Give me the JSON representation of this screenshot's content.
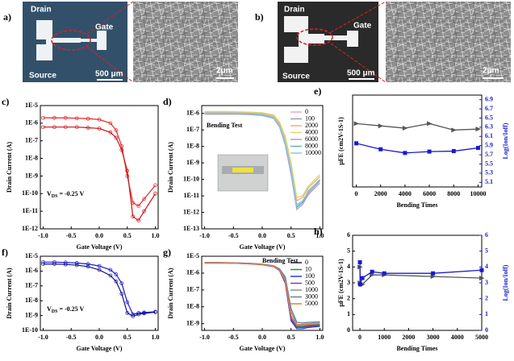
{
  "images": [
    {
      "label": "a)",
      "drain": "Drain",
      "gate": "Gate",
      "source": "Source",
      "scale_photo": "500 μm",
      "scale_sem": "2μm"
    },
    {
      "label": "b)",
      "drain": "Drain",
      "gate": "Gate",
      "source": "Source",
      "scale_photo": "500 μm",
      "scale_sem": "2μm"
    }
  ],
  "chart_data": [
    {
      "type": "line",
      "label": "c)",
      "xlabel": "Gate Voltage (V)",
      "ylabel": "Drain Current (A)",
      "yscale": "log",
      "annotation": {
        "main": "V",
        "sub": "DS",
        "rest": " = -0.25 V"
      },
      "x": [
        -1,
        -0.8,
        -0.6,
        -0.4,
        -0.2,
        0,
        0.2,
        0.3,
        0.4,
        0.5,
        0.6,
        0.7,
        0.8,
        1
      ],
      "xlim": [
        -1.05,
        1.05
      ],
      "xticks": [
        {
          "value": -1,
          "label": "-1.0"
        },
        -0.5,
        {
          "value": 0,
          "label": "0.0"
        },
        0.5,
        {
          "value": 1,
          "label": "1.0"
        }
      ],
      "ylim": [
        1e-12,
        1e-05
      ],
      "yticks": [
        {
          "value": 1e-05,
          "label": "1E-5"
        },
        {
          "value": 1e-06,
          "label": "1E-6"
        },
        {
          "value": 1e-07,
          "label": "1E-7"
        },
        {
          "value": 1e-08,
          "label": "1E-8"
        },
        {
          "value": 1e-09,
          "label": "1E-9"
        },
        {
          "value": 1e-10,
          "label": "1E-10"
        },
        {
          "value": 1e-11,
          "label": "1E-11"
        },
        {
          "value": 1e-12,
          "label": "1E-12"
        }
      ],
      "marker": "circle",
      "series": [
        {
          "color": "#e8262b",
          "values": [
            2e-06,
            2e-06,
            2e-06,
            1.9e-06,
            1.8e-06,
            1.6e-06,
            1e-06,
            4e-07,
            5e-08,
            1e-09,
            3e-11,
            2e-11,
            5e-11,
            3e-10
          ]
        },
        {
          "color": "#c81418",
          "values": [
            6e-07,
            6e-07,
            6e-07,
            6e-07,
            5.5e-07,
            5e-07,
            3e-07,
            1.5e-07,
            3e-08,
            2e-09,
            5e-12,
            3e-12,
            1e-11,
            1e-10
          ]
        }
      ]
    },
    {
      "type": "line",
      "label": "d)",
      "xlabel": "Gate Voltage (V)",
      "ylabel": "Drain Current (A)",
      "yscale": "log",
      "legend": "upper right",
      "annotation": {
        "main": "Bending Test"
      },
      "x": [
        -1,
        -0.8,
        -0.6,
        -0.4,
        -0.2,
        0,
        0.2,
        0.3,
        0.4,
        0.5,
        0.6,
        0.7,
        0.8,
        1
      ],
      "xlim": [
        -1.05,
        1.05
      ],
      "xticks": [
        {
          "value": -1,
          "label": "-1.0"
        },
        -0.5,
        {
          "value": 0,
          "label": "0.0"
        },
        0.5,
        {
          "value": 1,
          "label": "1.0"
        }
      ],
      "ylim": [
        1e-13,
        3e-06
      ],
      "yticks": [
        {
          "value": 1e-06,
          "label": "1E-6"
        },
        {
          "value": 1e-07,
          "label": "1E-7"
        },
        {
          "value": 1e-08,
          "label": "1E-8"
        },
        {
          "value": 1e-09,
          "label": "1E-9"
        },
        {
          "value": 1e-10,
          "label": "1E-10"
        },
        {
          "value": 1e-11,
          "label": "1E-11"
        },
        {
          "value": 1e-12,
          "label": "1E-12"
        },
        {
          "value": 1e-13,
          "label": "1E-13"
        }
      ],
      "series": [
        {
          "name": "0",
          "color": "#f4a6b8",
          "values": [
            1.1e-06,
            1.1e-06,
            1.1e-06,
            1.1e-06,
            1.05e-06,
            9e-07,
            6e-07,
            2e-07,
            2e-08,
            5e-10,
            3e-12,
            5e-12,
            2e-11,
            1e-10
          ]
        },
        {
          "name": "100",
          "color": "#a0a0a0",
          "values": [
            1e-06,
            1e-06,
            1e-06,
            1e-06,
            9.5e-07,
            8.5e-07,
            5.5e-07,
            1.8e-07,
            1.5e-08,
            3e-10,
            2e-12,
            4e-12,
            1.5e-11,
            8e-11
          ]
        },
        {
          "name": "2000",
          "color": "#f0b070",
          "values": [
            1.2e-06,
            1.2e-06,
            1.2e-06,
            1.2e-06,
            1.1e-06,
            1e-06,
            7e-07,
            2.5e-07,
            3e-08,
            8e-10,
            5e-12,
            8e-12,
            3e-11,
            1.5e-10
          ]
        },
        {
          "name": "4000",
          "color": "#e0d860",
          "values": [
            1.3e-06,
            1.3e-06,
            1.3e-06,
            1.25e-06,
            1.2e-06,
            1.1e-06,
            8e-07,
            3e-07,
            4e-08,
            1e-09,
            8e-12,
            1e-11,
            4e-11,
            2e-10
          ]
        },
        {
          "name": "6000",
          "color": "#b89ad8",
          "values": [
            9e-07,
            9e-07,
            9e-07,
            9e-07,
            8.5e-07,
            7.5e-07,
            5e-07,
            1.5e-07,
            1.2e-08,
            2e-10,
            1.5e-12,
            3e-12,
            1.2e-11,
            6e-11
          ]
        },
        {
          "name": "8000",
          "color": "#5ab8b0",
          "values": [
            1e-06,
            1e-06,
            1e-06,
            1e-06,
            9.5e-07,
            8e-07,
            5e-07,
            1.6e-07,
            1.4e-08,
            4e-10,
            2e-12,
            4e-12,
            2e-11,
            9e-11
          ]
        },
        {
          "name": "10000",
          "color": "#88c8f0",
          "values": [
            1.05e-06,
            1.05e-06,
            1.05e-06,
            1.05e-06,
            1e-06,
            8.5e-07,
            5.5e-07,
            1.7e-07,
            1.6e-08,
            4e-10,
            2.5e-12,
            5e-12,
            1.8e-11,
            1e-10
          ]
        }
      ]
    },
    {
      "type": "dual",
      "label": "e)",
      "xlabel": "Bending Times",
      "ylabel": "μFE (cm2V-1S-1)",
      "y2label": "Log(Ion/Ioff)",
      "y2color": "#1a1ad0",
      "x": [
        0,
        2000,
        4000,
        6000,
        8000,
        10000
      ],
      "xlim": [
        -300,
        10300
      ],
      "xticks": [
        0,
        2000,
        4000,
        6000,
        8000,
        10000
      ],
      "ylim": [
        5.0,
        7.0
      ],
      "y2lim": [
        5.0,
        7.0
      ],
      "y2ticks": [
        5.1,
        5.3,
        5.5,
        5.7,
        5.9,
        6.1,
        6.3,
        6.5,
        6.7,
        6.9
      ],
      "series": [
        {
          "color": "#555555",
          "marker": "triangle",
          "values": [
            6.38,
            6.33,
            6.28,
            6.38,
            6.24,
            6.26
          ]
        },
        {
          "color": "#1a1ad0",
          "marker": "square",
          "axis": "y2",
          "values": [
            5.95,
            5.82,
            5.74,
            5.77,
            5.78,
            5.85
          ]
        }
      ]
    },
    {
      "type": "line",
      "label": "f)",
      "xlabel": "Gate Voltage (V)",
      "ylabel": "Drain Current (A)",
      "yscale": "log",
      "annotation": {
        "main": "V",
        "sub": "DS",
        "rest": " = -0.25 V"
      },
      "x": [
        -1,
        -0.8,
        -0.6,
        -0.4,
        -0.2,
        0,
        0.2,
        0.3,
        0.4,
        0.5,
        0.6,
        0.7,
        0.8,
        1
      ],
      "xlim": [
        -1.05,
        1.05
      ],
      "xticks": [
        {
          "value": -1,
          "label": "-1.0"
        },
        -0.5,
        {
          "value": 0,
          "label": "0.0"
        },
        0.5,
        {
          "value": 1,
          "label": "1.0"
        }
      ],
      "ylim": [
        1e-10,
        1e-05
      ],
      "yticks": [
        {
          "value": 1e-05,
          "label": "1E-5"
        },
        {
          "value": 1e-06,
          "label": "1E-6"
        },
        {
          "value": 1e-07,
          "label": "1E-7"
        },
        {
          "value": 1e-08,
          "label": "1E-8"
        },
        {
          "value": 1e-09,
          "label": "1E-9"
        },
        {
          "value": 1e-10,
          "label": "1E-10"
        }
      ],
      "marker": "circle",
      "series": [
        {
          "color": "#1a1ad0",
          "values": [
            4e-06,
            4e-06,
            3.8e-06,
            3.5e-06,
            3e-06,
            2.2e-06,
            1.2e-06,
            6e-07,
            1.5e-07,
            8e-09,
            1.2e-09,
            1.5e-09,
            1.6e-09,
            1.8e-09
          ]
        },
        {
          "color": "#10108a",
          "values": [
            3e-06,
            3e-06,
            2.8e-06,
            2.5e-06,
            2e-06,
            1.2e-06,
            5e-07,
            2e-07,
            3e-08,
            1.5e-09,
            9e-10,
            1.2e-09,
            1.4e-09,
            1.7e-09
          ]
        }
      ]
    },
    {
      "type": "line",
      "label": "g)",
      "xlabel": "Gate Voltage (V)",
      "ylabel": "Drain Current (A)",
      "yscale": "log",
      "legend": "upper right",
      "annotation": {
        "main": "Bending Test"
      },
      "x": [
        -1,
        -0.8,
        -0.6,
        -0.4,
        -0.2,
        0,
        0.2,
        0.3,
        0.4,
        0.5,
        0.6,
        0.7,
        0.8,
        1
      ],
      "xlim": [
        -1.05,
        1.05
      ],
      "xticks": [
        {
          "value": -1,
          "label": "-1.0"
        },
        -0.5,
        {
          "value": 0,
          "label": "0.0"
        },
        0.5,
        {
          "value": 1,
          "label": "1.0"
        }
      ],
      "ylim": [
        4e-10,
        1e-05
      ],
      "yticks": [
        {
          "value": 1e-05,
          "label": "1E-5"
        },
        {
          "value": 1e-06,
          "label": "1E-6"
        },
        {
          "value": 1e-07,
          "label": "1E-7"
        },
        {
          "value": 1e-08,
          "label": "1E-8"
        },
        {
          "value": 1e-09,
          "label": "1E-9"
        }
      ],
      "series": [
        {
          "name": "0",
          "color": "#222222",
          "values": [
            4e-06,
            4e-06,
            4e-06,
            3.8e-06,
            3.6e-06,
            3.2e-06,
            2.5e-06,
            1.5e-06,
            3e-07,
            2e-09,
            6e-10,
            6e-10,
            7e-10,
            8e-10
          ]
        },
        {
          "name": "10",
          "color": "#2e8b2e",
          "values": [
            4.2e-06,
            4.2e-06,
            4.1e-06,
            3.9e-06,
            3.7e-06,
            3.3e-06,
            2.6e-06,
            1.6e-06,
            4e-07,
            3e-09,
            7e-10,
            7e-10,
            8e-10,
            9e-10
          ]
        },
        {
          "name": "100",
          "color": "#2040d0",
          "values": [
            4.1e-06,
            4.1e-06,
            4e-06,
            3.9e-06,
            3.7e-06,
            3.2e-06,
            2.4e-06,
            1.4e-06,
            2.5e-07,
            1.5e-09,
            5e-10,
            5e-10,
            6e-10,
            7e-10
          ]
        },
        {
          "name": "500",
          "color": "#8040a0",
          "values": [
            3.9e-06,
            3.9e-06,
            3.9e-06,
            3.7e-06,
            3.5e-06,
            3.1e-06,
            2.4e-06,
            1.4e-06,
            2.8e-07,
            2e-09,
            6e-10,
            6e-10,
            7e-10,
            8e-10
          ]
        },
        {
          "name": "1000",
          "color": "#909090",
          "values": [
            4e-06,
            4e-06,
            4e-06,
            3.8e-06,
            3.6e-06,
            3.3e-06,
            2.6e-06,
            1.7e-06,
            5e-07,
            5e-09,
            9e-10,
            9e-10,
            1e-09,
            1.1e-09
          ]
        },
        {
          "name": "3000",
          "color": "#6080b0",
          "values": [
            4.3e-06,
            4.3e-06,
            4.2e-06,
            4e-06,
            3.8e-06,
            3.4e-06,
            2.7e-06,
            1.8e-06,
            6e-07,
            8e-09,
            1.2e-09,
            1.1e-09,
            1.2e-09,
            1.3e-09
          ]
        },
        {
          "name": "5000",
          "color": "#f08030",
          "values": [
            4e-06,
            4e-06,
            4e-06,
            3.8e-06,
            3.6e-06,
            3.2e-06,
            2.5e-06,
            1.5e-06,
            3.5e-07,
            3e-09,
            8e-10,
            8e-10,
            9e-10,
            1e-09
          ]
        }
      ]
    },
    {
      "type": "dual",
      "label": "h)",
      "xlabel": "Bending Times",
      "ylabel": "μFE (cm2V-1S-1)",
      "y2label": "Log(Ion/Ioff)",
      "y2color": "#1a1ad0",
      "x": [
        0,
        10,
        100,
        500,
        1000,
        3000,
        5000
      ],
      "xlim": [
        -300,
        5000
      ],
      "xticks": [
        0,
        1000,
        2000,
        3000,
        4000,
        5000
      ],
      "ylim": [
        0,
        6
      ],
      "yticks": [
        0,
        1,
        2,
        3,
        4,
        5,
        6
      ],
      "y2lim": [
        0,
        6
      ],
      "y2ticks": [
        0,
        1,
        2,
        3,
        4,
        5,
        6
      ],
      "series": [
        {
          "color": "#555555",
          "marker": "triangle",
          "values": [
            4.0,
            3.0,
            2.9,
            3.5,
            3.5,
            3.4,
            3.3
          ]
        },
        {
          "color": "#1a1ad0",
          "marker": "square",
          "axis": "y2",
          "values": [
            4.3,
            2.9,
            3.3,
            3.7,
            3.6,
            3.6,
            3.8
          ]
        }
      ]
    }
  ]
}
